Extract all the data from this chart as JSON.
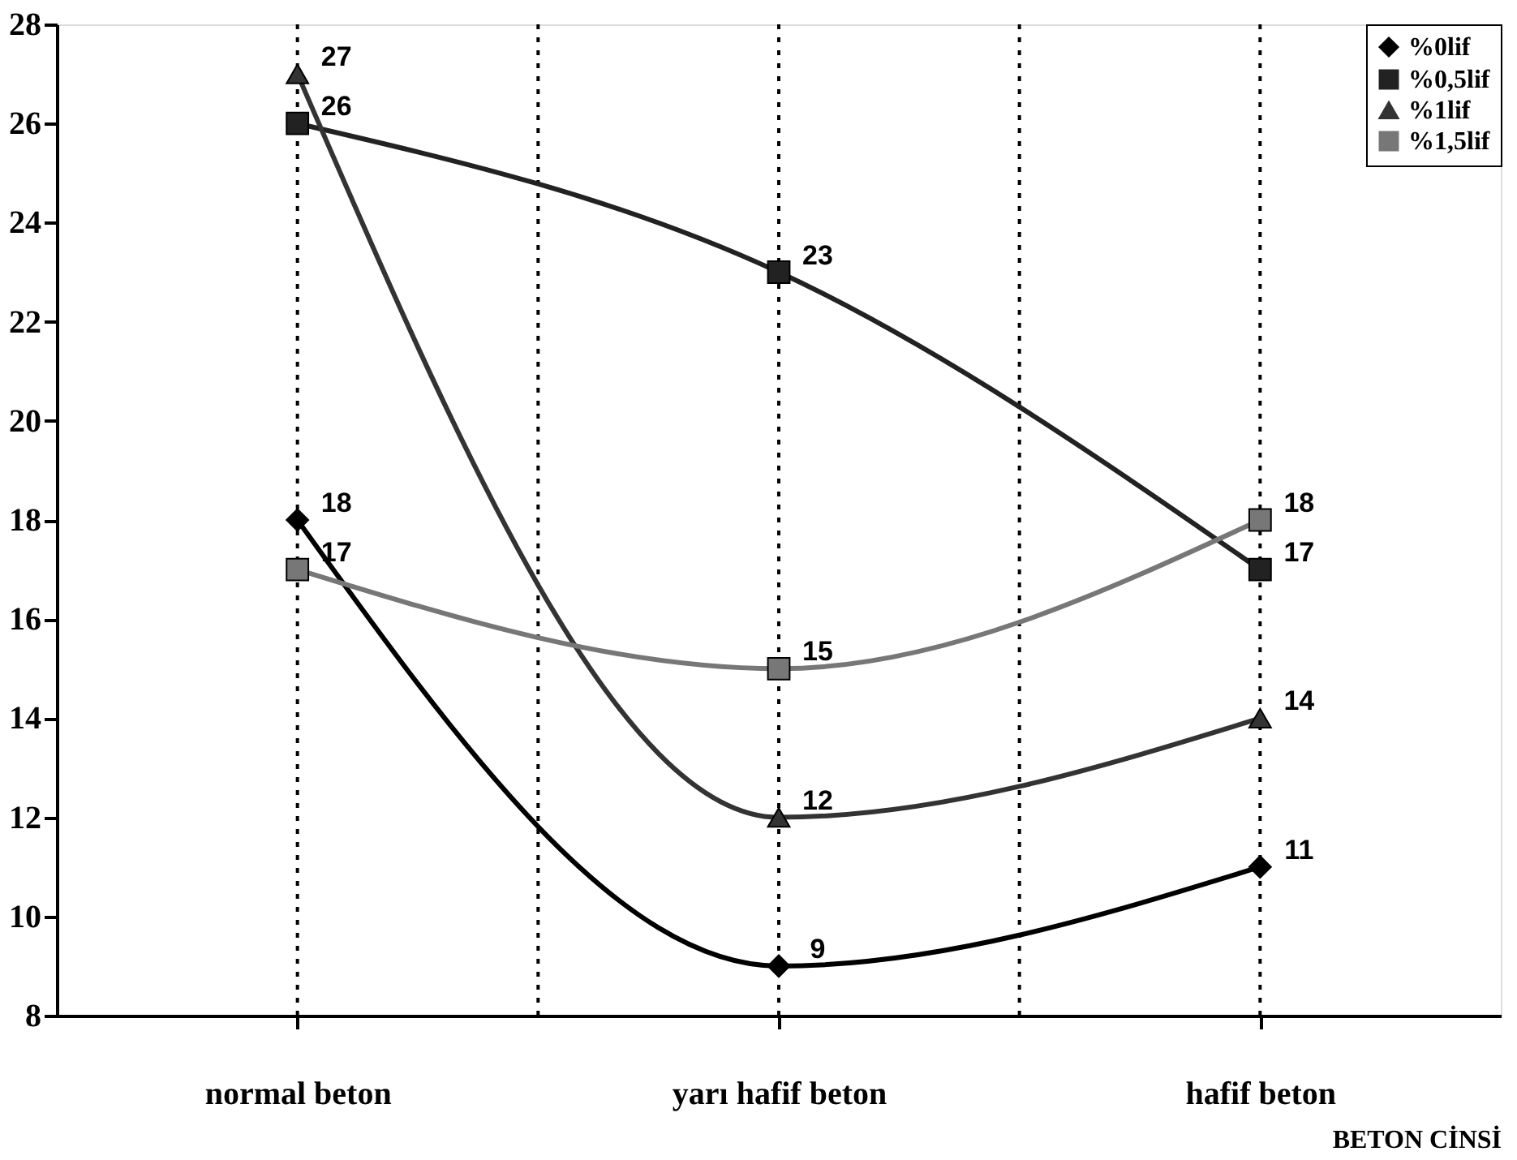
{
  "chart_data": {
    "type": "line",
    "xlabel": "BETON CİNSİ",
    "categories": [
      "normal beton",
      "yarı hafif beton",
      "hafif beton"
    ],
    "series": [
      {
        "name": "%0lif",
        "color": "#000000",
        "marker": "diamond",
        "values": [
          18,
          9,
          11
        ]
      },
      {
        "name": "%0,5lif",
        "color": "#222222",
        "marker": "square",
        "values": [
          26,
          23,
          17
        ]
      },
      {
        "name": "%1lif",
        "color": "#333333",
        "marker": "triangle",
        "values": [
          27,
          12,
          14
        ]
      },
      {
        "name": "%1,5lif",
        "color": "#777777",
        "marker": "square",
        "values": [
          17,
          15,
          18
        ]
      }
    ],
    "ylim": [
      8,
      28
    ],
    "yticks": [
      8,
      10,
      12,
      14,
      16,
      18,
      20,
      22,
      24,
      26,
      28
    ],
    "grid": "x",
    "legend": "top right",
    "data_labels": true,
    "line_style": "solid"
  }
}
